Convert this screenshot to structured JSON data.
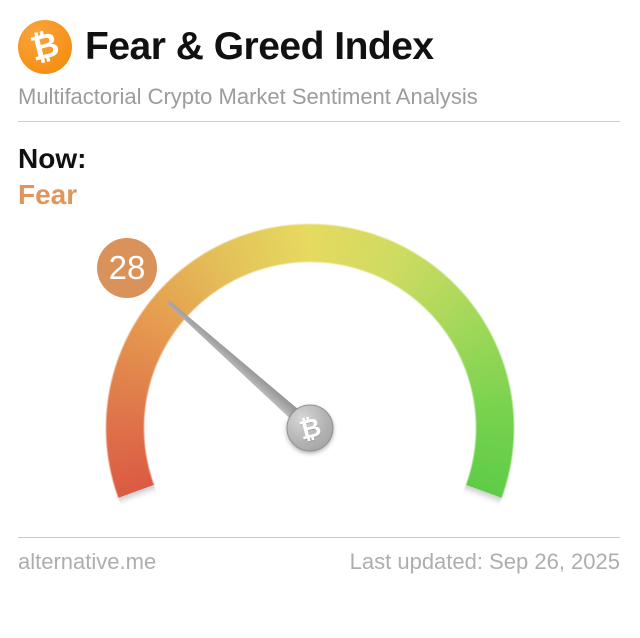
{
  "header": {
    "logo_icon": "bitcoin-icon",
    "logo_symbol": "₿",
    "title": "Fear & Greed Index",
    "subtitle": "Multifactorial Crypto Market Sentiment Analysis"
  },
  "now": {
    "label": "Now:",
    "classification": "Fear",
    "classification_color": "#e2955b"
  },
  "gauge": {
    "value": 28,
    "min": 0,
    "max": 100,
    "start_angle_deg": 250,
    "sweep_deg": 220,
    "hub_symbol": "₿",
    "badge_color": "#d9925a",
    "needle_color": "#a9a9a9",
    "gradient_colors": [
      "#db5a43",
      "#df7a4b",
      "#e69c4f",
      "#e3c159",
      "#e6da60",
      "#cedb61",
      "#a4d85a",
      "#7bd34f",
      "#5ecc47"
    ]
  },
  "footer": {
    "site": "alternative.me",
    "last_updated": "Last updated: Sep 26, 2025"
  },
  "colors": {
    "bitcoin_orange": "#f7931a",
    "title_text": "#111111",
    "subtitle_text": "#9c9c9c",
    "footer_text": "#aeaeae",
    "divider": "#cfcfcf"
  },
  "chart_data": {
    "type": "gauge",
    "title": "Fear & Greed Index",
    "subtitle": "Multifactorial Crypto Market Sentiment Analysis",
    "value": 28,
    "range": [
      0,
      100
    ],
    "classification": "Fear",
    "scale_description": "semicircular gauge sweeping 220 degrees from red (0, Extreme Fear, lower left) through yellow (50, top) to green (100, Extreme Greed, lower right)",
    "scale_colors": [
      "#db5a43",
      "#e69c4f",
      "#e6da60",
      "#a4d85a",
      "#5ecc47"
    ],
    "needle_points_to": 28,
    "last_updated": "Sep 26, 2025"
  }
}
